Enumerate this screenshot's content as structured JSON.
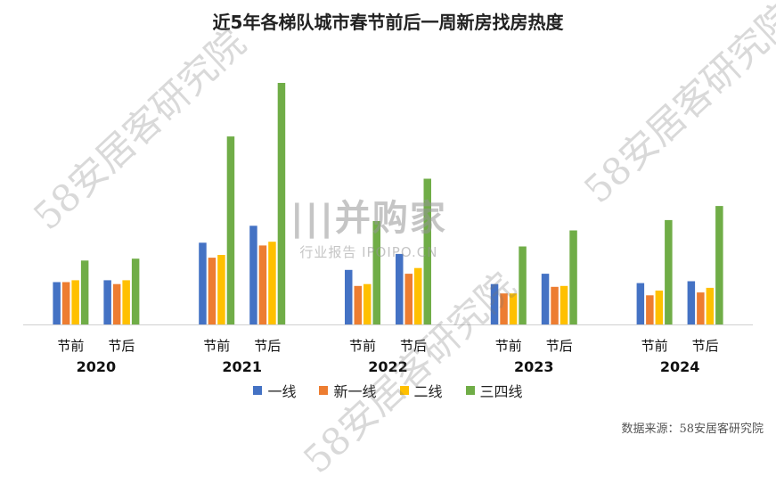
{
  "chart_data": {
    "type": "bar",
    "title": "近5年各梯队城市春节前后一周新房找房热度",
    "years": [
      "2020",
      "2021",
      "2022",
      "2023",
      "2024"
    ],
    "periods": [
      "节前",
      "节后"
    ],
    "series": [
      {
        "name": "一线",
        "color": "#4472C4",
        "values": [
          [
            45,
            47
          ],
          [
            87,
            105
          ],
          [
            58,
            75
          ],
          [
            43,
            54
          ],
          [
            44,
            46
          ]
        ]
      },
      {
        "name": "新一线",
        "color": "#ED7D31",
        "values": [
          [
            45,
            43
          ],
          [
            71,
            84
          ],
          [
            41,
            54
          ],
          [
            33,
            40
          ],
          [
            31,
            34
          ]
        ]
      },
      {
        "name": "二线",
        "color": "#FFC000",
        "values": [
          [
            47,
            47
          ],
          [
            74,
            88
          ],
          [
            43,
            60
          ],
          [
            33,
            41
          ],
          [
            36,
            39
          ]
        ]
      },
      {
        "name": "三四线",
        "color": "#70AD47",
        "values": [
          [
            68,
            70
          ],
          [
            200,
            257
          ],
          [
            110,
            155
          ],
          [
            83,
            100
          ],
          [
            111,
            126
          ]
        ]
      }
    ],
    "ylim": [
      0,
      275
    ],
    "grid": false,
    "legend_position": "bottom"
  },
  "source": "数据来源：58安居客研究院",
  "watermark": {
    "text": "58安居客研究院",
    "logo_title": "|||并购家",
    "logo_sub": "行业报告 IPOIPO.CN"
  }
}
